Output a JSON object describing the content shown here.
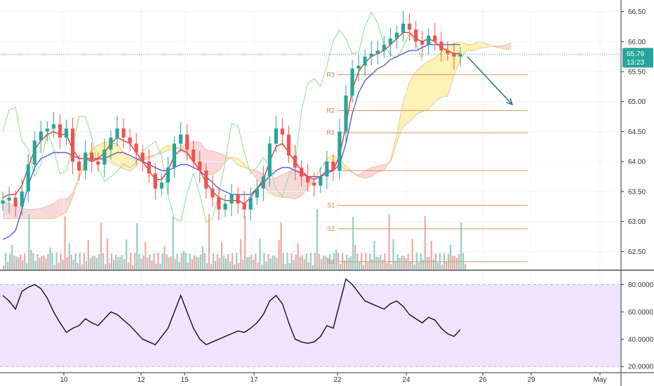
{
  "chart_data": [
    {
      "type": "candlestick",
      "title": "",
      "price_axis": {
        "ticks": [
          "66.50",
          "66.00",
          "65.50",
          "65.00",
          "64.50",
          "64.00",
          "63.50",
          "63.00",
          "62.50"
        ],
        "ylim": [
          62.2,
          66.6
        ]
      },
      "time_axis": {
        "ticks": [
          "10",
          "12",
          "15",
          "17",
          "22",
          "24",
          "26",
          "29",
          "May"
        ]
      },
      "last_price": {
        "value": "65.79",
        "countdown": "13:23",
        "color": "#26a69a"
      },
      "pivots": {
        "labels": [
          "R3",
          "R2",
          "R1",
          "S1",
          "S2",
          "S3"
        ],
        "levels": {
          "R3": 65.45,
          "R2": 64.85,
          "R1": 64.48,
          "P": 63.85,
          "S1": 63.27,
          "S2": 62.88,
          "S3": 62.33
        }
      },
      "projection_arrow": {
        "from": 65.75,
        "to": 64.95,
        "color": "#2a7f8a"
      },
      "series": [
        {
          "name": "close",
          "values": [
            63.35,
            63.4,
            63.25,
            63.5,
            63.95,
            64.35,
            64.5,
            64.55,
            64.62,
            64.4,
            64.55,
            64.0,
            63.85,
            64.15,
            64.0,
            63.95,
            64.2,
            64.4,
            64.55,
            64.4,
            64.3,
            64.15,
            64.0,
            63.8,
            63.55,
            63.65,
            63.9,
            64.3,
            64.45,
            64.2,
            64.0,
            63.85,
            63.55,
            63.4,
            63.2,
            63.3,
            63.45,
            63.3,
            63.2,
            63.4,
            63.55,
            63.75,
            64.3,
            64.55,
            64.45,
            64.1,
            63.9,
            63.75,
            63.65,
            63.6,
            63.75,
            64.0,
            63.85,
            64.5,
            65.1,
            65.55,
            65.6,
            65.75,
            65.8,
            65.85,
            65.95,
            66.05,
            66.15,
            66.3,
            66.2,
            66.0,
            65.95,
            66.1,
            66.0,
            65.85,
            65.8,
            65.75,
            65.79
          ]
        },
        {
          "name": "tenkan",
          "values": [
            63.4,
            63.45,
            63.45,
            63.6,
            63.9,
            64.2,
            64.35,
            64.45,
            64.5,
            64.45,
            64.45,
            64.2,
            64.05,
            64.05,
            64.0,
            64.05,
            64.15,
            64.3,
            64.4,
            64.35,
            64.3,
            64.15,
            64.0,
            63.85,
            63.7,
            63.7,
            63.85,
            64.1,
            64.2,
            64.15,
            64.0,
            63.85,
            63.65,
            63.5,
            63.4,
            63.35,
            63.35,
            63.35,
            63.3,
            63.4,
            63.55,
            63.7,
            64.0,
            64.25,
            64.3,
            64.15,
            64.0,
            63.85,
            63.75,
            63.7,
            63.75,
            63.85,
            63.85,
            64.1,
            64.6,
            65.2,
            65.5,
            65.65,
            65.75,
            65.8,
            65.85,
            65.95,
            66.05,
            66.15,
            66.15,
            66.05,
            66.0,
            66.05,
            66.0,
            65.9,
            65.85,
            65.8,
            65.8
          ]
        },
        {
          "name": "kijun",
          "values": [
            62.7,
            62.75,
            62.85,
            63.2,
            63.6,
            63.9,
            64.05,
            64.1,
            64.15,
            64.15,
            64.15,
            64.1,
            64.05,
            64.05,
            64.05,
            64.05,
            64.05,
            64.1,
            64.15,
            64.15,
            64.1,
            64.05,
            64.0,
            63.95,
            63.9,
            63.85,
            63.85,
            63.9,
            63.95,
            63.95,
            63.9,
            63.85,
            63.75,
            63.65,
            63.55,
            63.5,
            63.45,
            63.45,
            63.45,
            63.45,
            63.55,
            63.65,
            63.75,
            63.85,
            63.9,
            63.9,
            63.85,
            63.8,
            63.75,
            63.75,
            63.75,
            63.8,
            63.85,
            63.95,
            64.3,
            64.8,
            65.15,
            65.35,
            65.45,
            65.55,
            65.6,
            65.7,
            65.75,
            65.8,
            65.85,
            65.85,
            65.9,
            65.95,
            65.95,
            65.95,
            65.95,
            65.95,
            65.95
          ]
        },
        {
          "name": "rsi",
          "values": [
            72,
            68,
            62,
            75,
            78,
            80,
            77,
            70,
            60,
            52,
            45,
            48,
            50,
            55,
            52,
            50,
            55,
            60,
            58,
            54,
            50,
            45,
            40,
            38,
            36,
            42,
            48,
            60,
            72,
            60,
            48,
            40,
            36,
            38,
            40,
            42,
            44,
            46,
            45,
            48,
            52,
            58,
            68,
            72,
            66,
            52,
            40,
            38,
            37,
            38,
            42,
            50,
            48,
            66,
            84,
            80,
            74,
            68,
            66,
            64,
            62,
            66,
            68,
            64,
            58,
            55,
            52,
            56,
            54,
            48,
            44,
            42,
            47
          ]
        }
      ],
      "rsi_axis": {
        "ticks": [
          "80.0000",
          "60.0000",
          "40.0000",
          "20.0000"
        ],
        "ylim": [
          16,
          90
        ]
      },
      "colors": {
        "up": "#26a69a",
        "down": "#ef5350",
        "tenkan": "#e53935",
        "kijun": "#5c5cd6",
        "lagging": "#8be08b",
        "cloud_bull": "#fff2b3",
        "cloud_bear": "#f8d8d8",
        "rsi_band": "#efe4fb",
        "rsi_line": "#111111",
        "pivot": "#d29a5c"
      }
    }
  ]
}
